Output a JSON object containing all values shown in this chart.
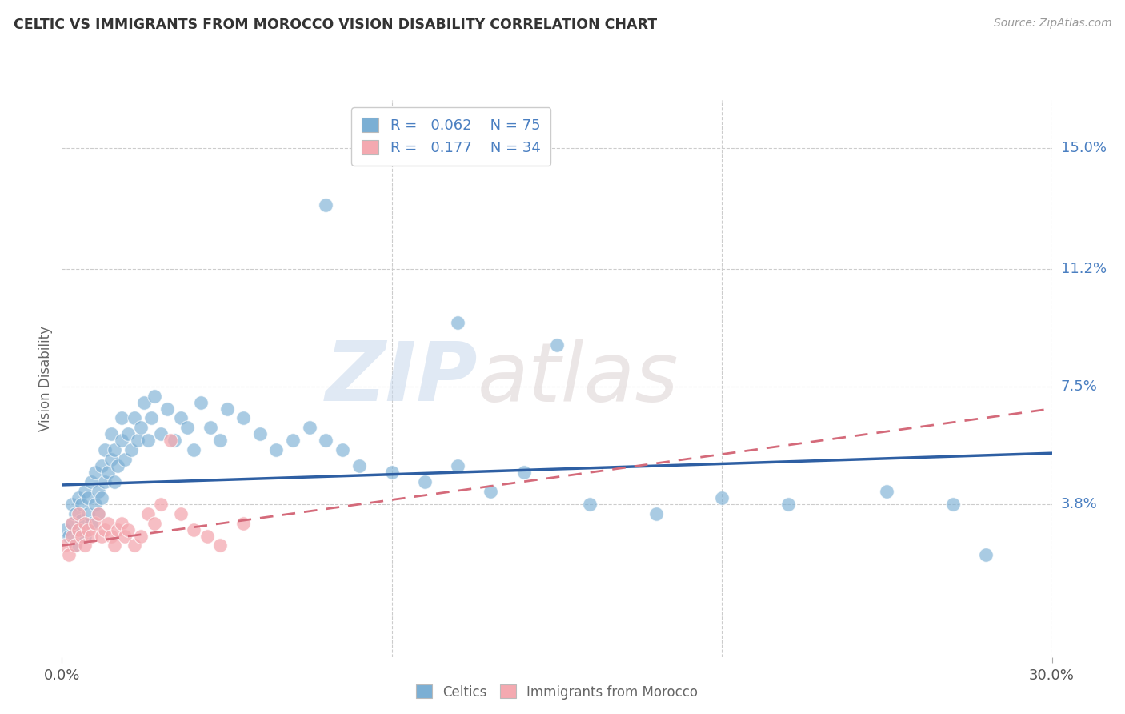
{
  "title": "CELTIC VS IMMIGRANTS FROM MOROCCO VISION DISABILITY CORRELATION CHART",
  "source": "Source: ZipAtlas.com",
  "ylabel": "Vision Disability",
  "xlim": [
    0.0,
    0.3
  ],
  "ylim": [
    -0.01,
    0.165
  ],
  "yticks": [
    0.038,
    0.075,
    0.112,
    0.15
  ],
  "ytick_labels": [
    "3.8%",
    "7.5%",
    "11.2%",
    "15.0%"
  ],
  "xticks": [
    0.0,
    0.3
  ],
  "xtick_labels": [
    "0.0%",
    "30.0%"
  ],
  "celtics_R": 0.062,
  "celtics_N": 75,
  "morocco_R": 0.177,
  "morocco_N": 34,
  "celtics_color": "#7BAFD4",
  "morocco_color": "#F4A9B0",
  "celtics_line_color": "#2E5FA3",
  "morocco_line_color": "#D46A7A",
  "watermark_zip": "ZIP",
  "watermark_atlas": "atlas",
  "background_color": "#FFFFFF",
  "grid_color": "#CCCCCC",
  "right_label_color": "#4A7FC1",
  "title_color": "#333333",
  "celtics_x": [
    0.001,
    0.002,
    0.003,
    0.003,
    0.004,
    0.004,
    0.005,
    0.005,
    0.006,
    0.006,
    0.007,
    0.007,
    0.008,
    0.008,
    0.009,
    0.009,
    0.01,
    0.01,
    0.011,
    0.011,
    0.012,
    0.012,
    0.013,
    0.013,
    0.014,
    0.015,
    0.015,
    0.016,
    0.016,
    0.017,
    0.018,
    0.018,
    0.019,
    0.02,
    0.021,
    0.022,
    0.023,
    0.024,
    0.025,
    0.026,
    0.027,
    0.028,
    0.03,
    0.032,
    0.034,
    0.036,
    0.038,
    0.04,
    0.042,
    0.045,
    0.048,
    0.05,
    0.055,
    0.06,
    0.065,
    0.07,
    0.075,
    0.08,
    0.085,
    0.09,
    0.1,
    0.11,
    0.12,
    0.13,
    0.14,
    0.16,
    0.18,
    0.2,
    0.22,
    0.25,
    0.27,
    0.08,
    0.12,
    0.15,
    0.28
  ],
  "celtics_y": [
    0.03,
    0.028,
    0.032,
    0.038,
    0.025,
    0.035,
    0.03,
    0.04,
    0.033,
    0.038,
    0.028,
    0.042,
    0.035,
    0.04,
    0.032,
    0.045,
    0.038,
    0.048,
    0.035,
    0.042,
    0.04,
    0.05,
    0.045,
    0.055,
    0.048,
    0.052,
    0.06,
    0.045,
    0.055,
    0.05,
    0.058,
    0.065,
    0.052,
    0.06,
    0.055,
    0.065,
    0.058,
    0.062,
    0.07,
    0.058,
    0.065,
    0.072,
    0.06,
    0.068,
    0.058,
    0.065,
    0.062,
    0.055,
    0.07,
    0.062,
    0.058,
    0.068,
    0.065,
    0.06,
    0.055,
    0.058,
    0.062,
    0.058,
    0.055,
    0.05,
    0.048,
    0.045,
    0.05,
    0.042,
    0.048,
    0.038,
    0.035,
    0.04,
    0.038,
    0.042,
    0.038,
    0.132,
    0.095,
    0.088,
    0.022
  ],
  "morocco_x": [
    0.001,
    0.002,
    0.003,
    0.003,
    0.004,
    0.005,
    0.005,
    0.006,
    0.007,
    0.007,
    0.008,
    0.009,
    0.01,
    0.011,
    0.012,
    0.013,
    0.014,
    0.015,
    0.016,
    0.017,
    0.018,
    0.019,
    0.02,
    0.022,
    0.024,
    0.026,
    0.028,
    0.03,
    0.033,
    0.036,
    0.04,
    0.044,
    0.048,
    0.055
  ],
  "morocco_y": [
    0.025,
    0.022,
    0.028,
    0.032,
    0.025,
    0.03,
    0.035,
    0.028,
    0.025,
    0.032,
    0.03,
    0.028,
    0.032,
    0.035,
    0.028,
    0.03,
    0.032,
    0.028,
    0.025,
    0.03,
    0.032,
    0.028,
    0.03,
    0.025,
    0.028,
    0.035,
    0.032,
    0.038,
    0.058,
    0.035,
    0.03,
    0.028,
    0.025,
    0.032
  ],
  "celtics_line_x": [
    0.0,
    0.3
  ],
  "celtics_line_y": [
    0.044,
    0.054
  ],
  "morocco_line_x": [
    0.0,
    0.3
  ],
  "morocco_line_y": [
    0.025,
    0.068
  ]
}
